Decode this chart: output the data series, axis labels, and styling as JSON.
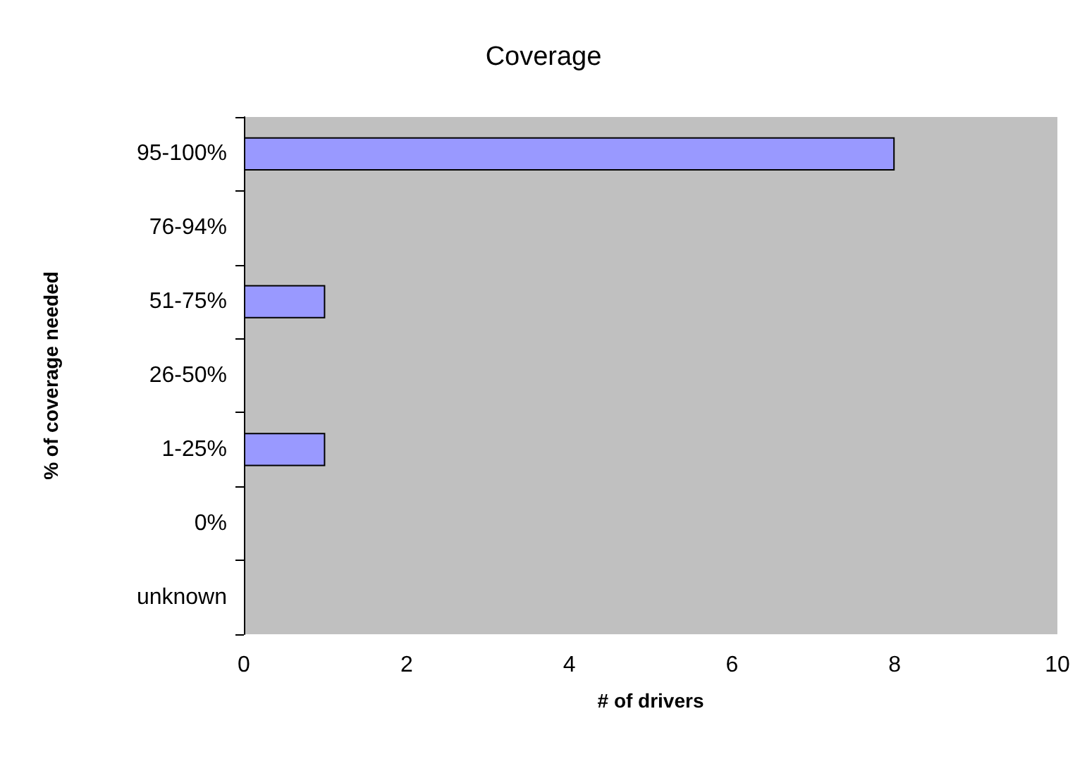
{
  "chart_data": {
    "type": "bar",
    "orientation": "horizontal",
    "title": "Coverage",
    "xlabel": "# of drivers",
    "ylabel": "% of coverage needed",
    "categories": [
      "95-100%",
      "76-94%",
      "51-75%",
      "26-50%",
      "1-25%",
      "0%",
      "unknown"
    ],
    "values": [
      8,
      0,
      1,
      0,
      1,
      0,
      0
    ],
    "color": "#9999ff",
    "xlim": [
      0,
      10
    ],
    "xticks": [
      0,
      2,
      4,
      6,
      8,
      10
    ],
    "grid": false
  }
}
